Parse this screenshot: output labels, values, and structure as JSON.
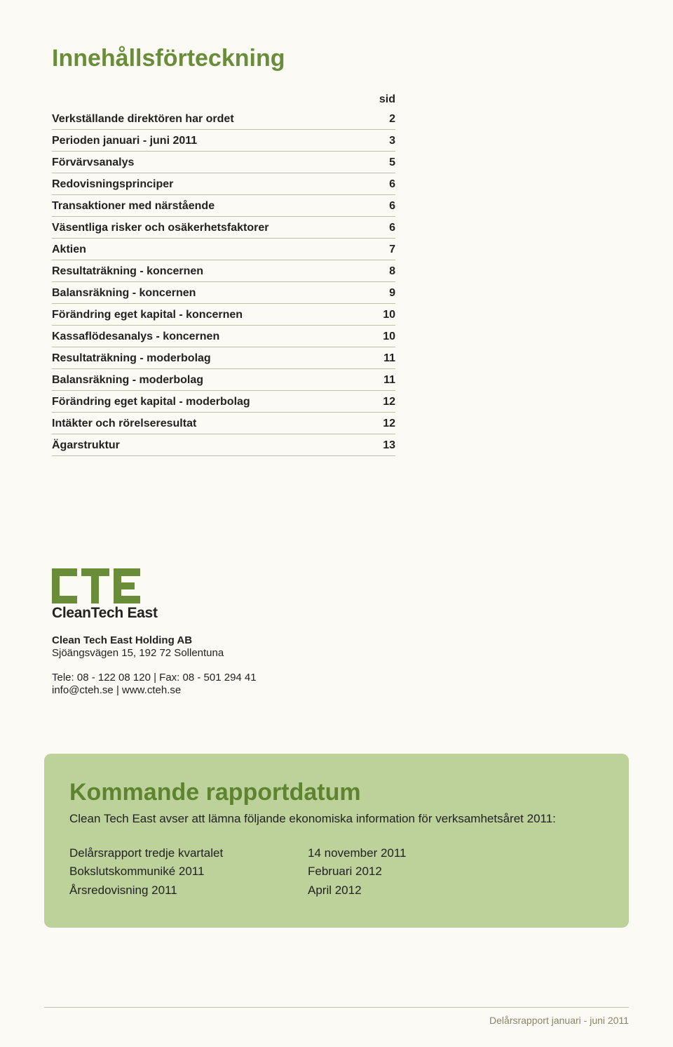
{
  "title": "Innehållsförteckning",
  "toc": {
    "header": "sid",
    "entries": [
      {
        "label": "Verkställande direktören har ordet",
        "page": "2"
      },
      {
        "label": "Perioden januari - juni 2011",
        "page": "3"
      },
      {
        "label": "Förvärvsanalys",
        "page": "5"
      },
      {
        "label": "Redovisningsprinciper",
        "page": "6"
      },
      {
        "label": "Transaktioner med närstående",
        "page": "6"
      },
      {
        "label": "Väsentliga risker och osäkerhetsfaktorer",
        "page": "6"
      },
      {
        "label": "Aktien",
        "page": "7"
      },
      {
        "label": "Resultaträkning - koncernen",
        "page": "8"
      },
      {
        "label": "Balansräkning - koncernen",
        "page": "9"
      },
      {
        "label": "Förändring eget kapital - koncernen",
        "page": "10"
      },
      {
        "label": "Kassaflödesanalys -  koncernen",
        "page": "10"
      },
      {
        "label": "Resultaträkning - moderbolag",
        "page": "11"
      },
      {
        "label": "Balansräkning - moderbolag",
        "page": "11"
      },
      {
        "label": "Förändring eget kapital - moderbolag",
        "page": "12"
      },
      {
        "label": "Intäkter och rörelseresultat",
        "page": "12"
      },
      {
        "label": "Ägarstruktur",
        "page": "13"
      }
    ]
  },
  "logo": {
    "text": "CleanTech East",
    "color": "#6a8d3a"
  },
  "company": {
    "name": "Clean Tech East Holding AB",
    "address": "Sjöängsvägen 15, 192 72 Sollentuna",
    "contact": "Tele: 08 - 122 08 120  |  Fax:  08 - 501 294 41",
    "web": "info@cteh.se  |  www.cteh.se"
  },
  "panel": {
    "title": "Kommande rapportdatum",
    "subtitle": "Clean Tech East avser att lämna följande ekonomiska information för verksamhetsåret 2011:",
    "schedule": [
      {
        "k": "Delårsrapport tredje kvartalet",
        "v": "14 november 2011"
      },
      {
        "k": "Bokslutskommuniké 2011",
        "v": "Februari 2012"
      },
      {
        "k": "Årsredovisning 2011",
        "v": "April 2012"
      }
    ]
  },
  "footer": "Delårsrapport januari - juni 2011"
}
